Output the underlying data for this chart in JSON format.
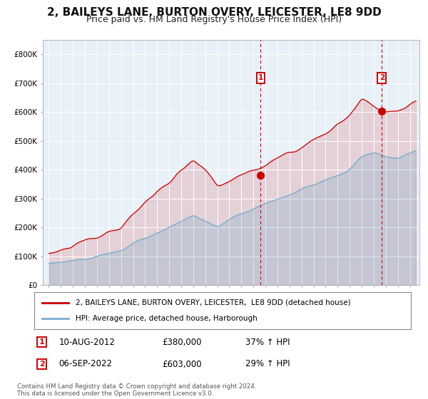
{
  "title": "2, BAILEYS LANE, BURTON OVERY, LEICESTER, LE8 9DD",
  "subtitle": "Price paid vs. HM Land Registry's House Price Index (HPI)",
  "title_fontsize": 11,
  "subtitle_fontsize": 9,
  "background_color": "#ffffff",
  "plot_bg_color": "#e8f0f8",
  "grid_color": "#ffffff",
  "red_line_color": "#cc0000",
  "blue_line_color": "#7aadcc",
  "marker1_x": 2012.61,
  "marker1_y": 380000,
  "marker2_x": 2022.68,
  "marker2_y": 603000,
  "vline1_x": 2012.61,
  "vline2_x": 2022.68,
  "annotation_box_color": "#cc0000",
  "ylim": [
    0,
    850000
  ],
  "xlim_start": 1994.5,
  "xlim_end": 2025.8,
  "yticks": [
    0,
    100000,
    200000,
    300000,
    400000,
    500000,
    600000,
    700000,
    800000
  ],
  "ytick_labels": [
    "£0",
    "£100K",
    "£200K",
    "£300K",
    "£400K",
    "£500K",
    "£600K",
    "£700K",
    "£800K"
  ],
  "xticks": [
    1995,
    1996,
    1997,
    1998,
    1999,
    2000,
    2001,
    2002,
    2003,
    2004,
    2005,
    2006,
    2007,
    2008,
    2009,
    2010,
    2011,
    2012,
    2013,
    2014,
    2015,
    2016,
    2017,
    2018,
    2019,
    2020,
    2021,
    2022,
    2023,
    2024,
    2025
  ],
  "legend_label_red": "2, BAILEYS LANE, BURTON OVERY, LEICESTER,  LE8 9DD (detached house)",
  "legend_label_blue": "HPI: Average price, detached house, Harborough",
  "note1_label": "1",
  "note1_date": "10-AUG-2012",
  "note1_price": "£380,000",
  "note1_hpi": "37% ↑ HPI",
  "note2_label": "2",
  "note2_date": "06-SEP-2022",
  "note2_price": "£603,000",
  "note2_hpi": "29% ↑ HPI",
  "footer": "Contains HM Land Registry data © Crown copyright and database right 2024.\nThis data is licensed under the Open Government Licence v3.0."
}
